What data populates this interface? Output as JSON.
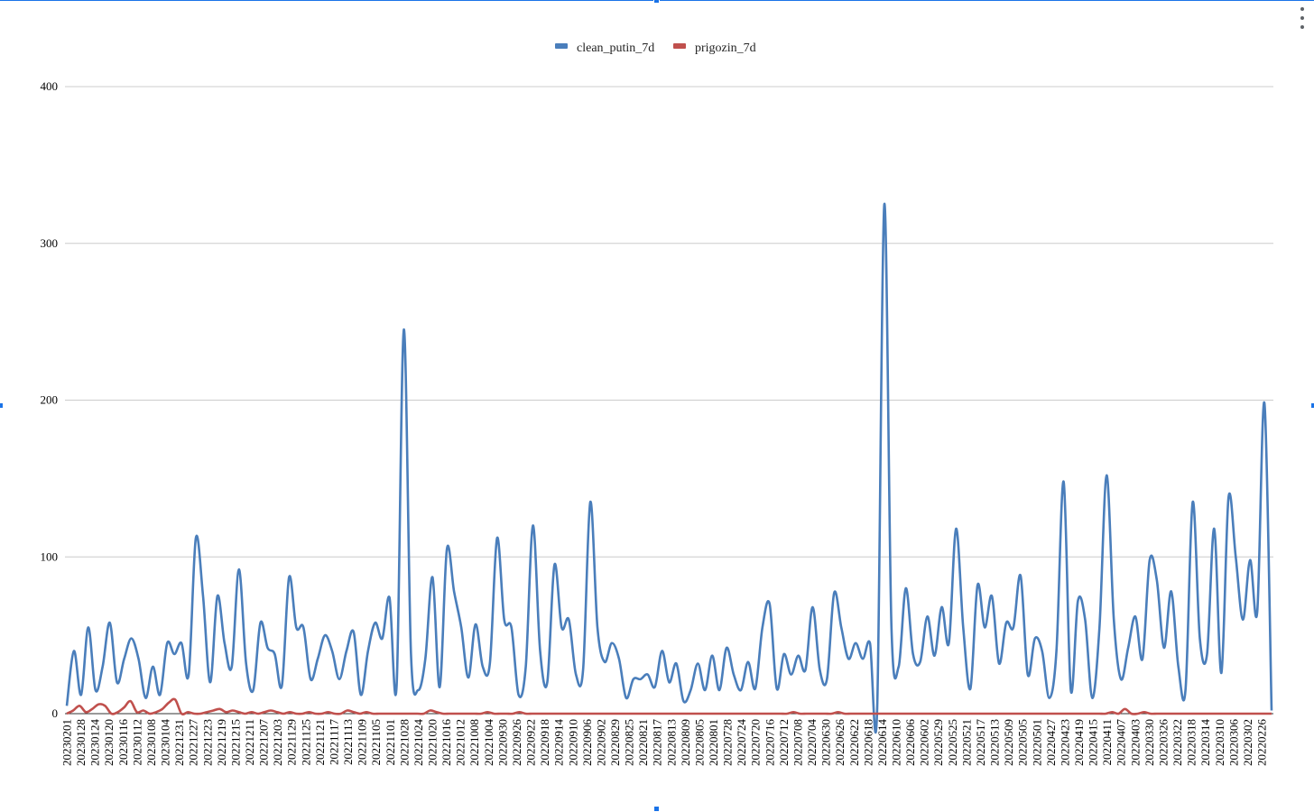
{
  "chart_data": {
    "type": "line",
    "title": "",
    "xlabel": "",
    "ylabel": "",
    "ylim": [
      0,
      400
    ],
    "yticks": [
      0,
      100,
      200,
      300,
      400
    ],
    "grid": true,
    "legend_position": "top-center",
    "x_tick_labels": [
      "20230201",
      "20230128",
      "20230124",
      "20230120",
      "20230116",
      "20230112",
      "20230108",
      "20230104",
      "20221231",
      "20221227",
      "20221223",
      "20221219",
      "20221215",
      "20221211",
      "20221207",
      "20221203",
      "20221129",
      "20221125",
      "20221121",
      "20221117",
      "20221113",
      "20221109",
      "20221105",
      "20221101",
      "20221028",
      "20221024",
      "20221020",
      "20221016",
      "20221012",
      "20221008",
      "20221004",
      "20220930",
      "20220926",
      "20220922",
      "20220918",
      "20220914",
      "20220910",
      "20220906",
      "20220902",
      "20220829",
      "20220825",
      "20220821",
      "20220817",
      "20220813",
      "20220809",
      "20220805",
      "20220801",
      "20220728",
      "20220724",
      "20220720",
      "20220716",
      "20220712",
      "20220708",
      "20220704",
      "20220630",
      "20220626",
      "20220622",
      "20220618",
      "20220614",
      "20220610",
      "20220606",
      "20220602",
      "20220529",
      "20220525",
      "20220521",
      "20220517",
      "20220513",
      "20220509",
      "20220505",
      "20220501",
      "20220427",
      "20220423",
      "20220419",
      "20220415",
      "20220411",
      "20220407",
      "20220403",
      "20220330",
      "20220326",
      "20220322",
      "20220318",
      "20220314",
      "20220310",
      "20220306",
      "20220302",
      "20220226"
    ],
    "series": [
      {
        "name": "clean_putin_7d",
        "color": "#4a7ebb",
        "values": [
          5,
          40,
          12,
          55,
          15,
          30,
          58,
          20,
          35,
          48,
          35,
          10,
          30,
          12,
          45,
          38,
          45,
          25,
          112,
          75,
          20,
          75,
          45,
          30,
          92,
          32,
          15,
          58,
          42,
          38,
          18,
          87,
          55,
          55,
          22,
          35,
          50,
          40,
          22,
          40,
          52,
          12,
          40,
          58,
          48,
          74,
          18,
          245,
          38,
          15,
          35,
          87,
          17,
          105,
          78,
          55,
          23,
          57,
          30,
          32,
          112,
          60,
          55,
          12,
          30,
          120,
          40,
          20,
          95,
          55,
          60,
          25,
          28,
          135,
          55,
          33,
          45,
          35,
          10,
          22,
          22,
          25,
          17,
          40,
          20,
          32,
          8,
          15,
          32,
          15,
          37,
          15,
          42,
          25,
          15,
          33,
          16,
          55,
          70,
          16,
          38,
          25,
          37,
          28,
          68,
          28,
          22,
          77,
          55,
          35,
          45,
          35,
          45,
          2,
          325,
          55,
          30,
          80,
          38,
          33,
          62,
          37,
          68,
          45,
          118,
          55,
          16,
          82,
          55,
          75,
          32,
          58,
          55,
          88,
          25,
          48,
          40,
          10,
          40,
          148,
          15,
          72,
          60,
          10,
          55,
          152,
          60,
          22,
          42,
          62,
          35,
          98,
          85,
          42,
          78,
          30,
          15,
          135,
          48,
          38,
          118,
          26,
          138,
          100,
          60,
          98,
          65,
          198,
          2
        ]
      },
      {
        "name": "prigozin_7d",
        "color": "#c0504d",
        "values": [
          0,
          2,
          5,
          1,
          3,
          6,
          5,
          0,
          1,
          4,
          8,
          1,
          2,
          0,
          1,
          3,
          7,
          9,
          0,
          1,
          0,
          0,
          1,
          2,
          3,
          1,
          2,
          1,
          0,
          1,
          0,
          1,
          2,
          1,
          0,
          1,
          0,
          0,
          1,
          0,
          0,
          1,
          0,
          0,
          2,
          1,
          0,
          1,
          0,
          0,
          0,
          0,
          0,
          0,
          0,
          0,
          0,
          2,
          1,
          0,
          0,
          0,
          0,
          0,
          0,
          0,
          1,
          0,
          0,
          0,
          0,
          1,
          0,
          0,
          0,
          0,
          0,
          0,
          0,
          0,
          0,
          0,
          0,
          0,
          0,
          0,
          0,
          0,
          0,
          0,
          0,
          0,
          0,
          0,
          0,
          0,
          0,
          0,
          0,
          0,
          0,
          0,
          0,
          0,
          0,
          0,
          0,
          0,
          0,
          0,
          0,
          0,
          0,
          0,
          1,
          0,
          0,
          0,
          0,
          0,
          0,
          1,
          0,
          0,
          0,
          0,
          0,
          0,
          0,
          0,
          0,
          0,
          0,
          0,
          0,
          0,
          0,
          0,
          0,
          0,
          0,
          0,
          0,
          0,
          0,
          0,
          0,
          0,
          0,
          0,
          0,
          0,
          0,
          0,
          0,
          0,
          0,
          0,
          0,
          0,
          0,
          0,
          0,
          0,
          1,
          0,
          3,
          0,
          0,
          1,
          0,
          0,
          0,
          0,
          0,
          0,
          0,
          0,
          0,
          0,
          0,
          0,
          0,
          0,
          0,
          0,
          0,
          0,
          0,
          0
        ]
      }
    ]
  }
}
